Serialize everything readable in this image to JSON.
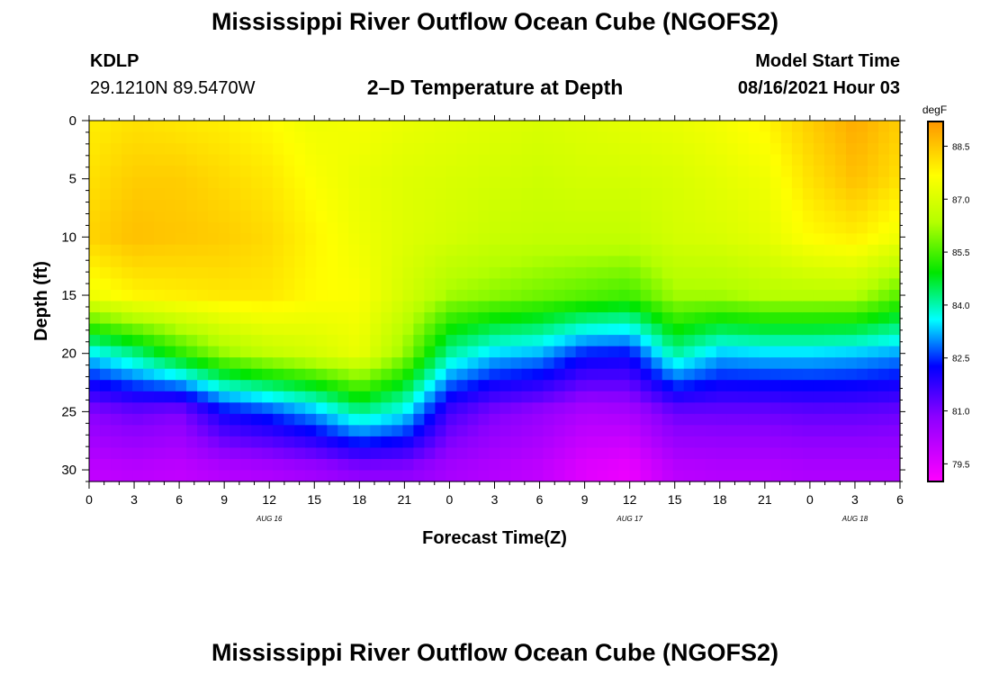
{
  "header": {
    "title": "Mississippi River Outflow Ocean Cube (NGOFS2)",
    "station_id": "KDLP",
    "station_coords": "29.1210N  89.5470W",
    "subtitle": "2–D Temperature at Depth",
    "model_start_label": "Model Start Time",
    "model_start_value": "08/16/2021 Hour 03"
  },
  "footer": {
    "title": "Mississippi River Outflow Ocean Cube (NGOFS2)"
  },
  "chart_data": {
    "type": "heatmap",
    "title": "2–D Temperature at Depth",
    "xlabel": "Forecast Time(Z)",
    "ylabel": "Depth (ft)",
    "x_range_hours": [
      0,
      54
    ],
    "x_tick_labels": [
      "0",
      "3",
      "6",
      "9",
      "12",
      "15",
      "18",
      "21",
      "0",
      "3",
      "6",
      "9",
      "12",
      "15",
      "18",
      "21",
      "0",
      "3",
      "6"
    ],
    "date_labels": [
      {
        "label": "AUG 16",
        "hour": 12
      },
      {
        "label": "AUG 17",
        "hour": 36
      },
      {
        "label": "AUG 18",
        "hour": 51
      }
    ],
    "y_range_ft": [
      0,
      31
    ],
    "y_tick_labels": [
      "0",
      "5",
      "10",
      "15",
      "20",
      "25",
      "30"
    ],
    "y_ticks": [
      0,
      5,
      10,
      15,
      20,
      25,
      30
    ],
    "colorbar": {
      "unit": "degF",
      "min": 79,
      "max": 89.2,
      "tick_labels": [
        "88.5",
        "87.0",
        "85.5",
        "84.0",
        "82.5",
        "81.0",
        "79.5"
      ],
      "ticks": [
        88.5,
        87.0,
        85.5,
        84.0,
        82.5,
        81.0,
        79.5
      ]
    },
    "profiles": {
      "times_hours": [
        0,
        3,
        6,
        9,
        12,
        15,
        18,
        21,
        24,
        27,
        30,
        33,
        36,
        39,
        42,
        45,
        48,
        51,
        54
      ],
      "depths_ft": [
        0,
        5,
        10,
        15,
        20,
        25,
        30
      ],
      "temperature_degF": [
        [
          87.9,
          88.1,
          88.3,
          87.4,
          83.5,
          80.9,
          80.0
        ],
        [
          88.1,
          88.4,
          88.6,
          87.8,
          84.2,
          81.2,
          80.1
        ],
        [
          88.0,
          88.4,
          88.5,
          87.9,
          85.2,
          81.0,
          80.0
        ],
        [
          87.9,
          88.2,
          88.4,
          88.0,
          86.1,
          82.2,
          80.2
        ],
        [
          87.7,
          88.0,
          88.2,
          88.0,
          86.6,
          82.6,
          80.3
        ],
        [
          87.4,
          87.6,
          87.8,
          87.7,
          86.9,
          83.2,
          80.5
        ],
        [
          87.5,
          87.3,
          87.4,
          87.6,
          87.3,
          84.2,
          80.8
        ],
        [
          87.3,
          87.1,
          87.1,
          86.9,
          86.1,
          83.6,
          80.8
        ],
        [
          87.2,
          87.0,
          86.9,
          86.2,
          84.1,
          81.6,
          80.4
        ],
        [
          87.1,
          86.9,
          86.7,
          86.0,
          83.4,
          81.0,
          80.2
        ],
        [
          87.0,
          86.8,
          86.6,
          85.8,
          83.2,
          80.7,
          80.0
        ],
        [
          87.1,
          86.9,
          86.6,
          85.6,
          82.4,
          80.3,
          79.5
        ],
        [
          87.2,
          86.9,
          86.6,
          85.4,
          82.3,
          80.4,
          79.3
        ],
        [
          87.3,
          87.0,
          86.9,
          86.2,
          84.1,
          81.2,
          80.1
        ],
        [
          87.5,
          87.2,
          87.0,
          86.2,
          83.3,
          81.2,
          80.2
        ],
        [
          87.8,
          87.4,
          87.2,
          86.4,
          83.4,
          81.2,
          80.2
        ],
        [
          88.4,
          88.1,
          87.7,
          86.4,
          83.4,
          81.3,
          80.3
        ],
        [
          88.9,
          88.6,
          87.9,
          86.4,
          83.3,
          81.3,
          80.3
        ],
        [
          88.4,
          88.1,
          87.4,
          85.6,
          83.1,
          81.2,
          80.3
        ]
      ]
    }
  },
  "colors": {
    "scale_magenta": "#ff00ff",
    "scale_purple": "#8c00ff",
    "scale_blue": "#0000ff",
    "scale_cyan": "#00ffff",
    "scale_green": "#00e600",
    "scale_lime": "#b4ff00",
    "scale_yellow": "#ffff00",
    "scale_orange": "#ff9600"
  }
}
